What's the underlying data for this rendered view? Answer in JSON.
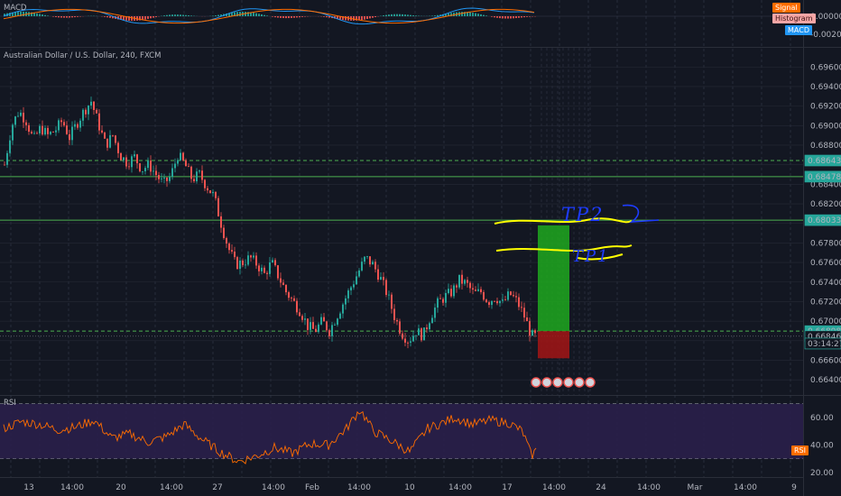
{
  "symbol": {
    "title": "Australian Dollar / U.S. Dollar, 240, FXCM"
  },
  "macd_pane": {
    "label": "MACD",
    "legend": [
      {
        "label": "Signal",
        "color": "#ff6d00"
      },
      {
        "label": "Histogram",
        "color": "#f7a6a6"
      },
      {
        "label": "MACD",
        "color": "#2196f3"
      }
    ],
    "ticks": [
      "0.00000",
      "-0.00200"
    ]
  },
  "rsi_pane": {
    "label": "RSI",
    "badge": "RSI",
    "ticks": [
      "60.00",
      "40.00",
      "20.00"
    ]
  },
  "price_axis": {
    "ticks": [
      "0.69600",
      "0.69400",
      "0.69200",
      "0.69000",
      "0.68800",
      "0.68400",
      "0.68200",
      "0.67800",
      "0.67600",
      "0.67400",
      "0.67200",
      "0.67000",
      "0.66600",
      "0.66400"
    ],
    "level_badges": [
      {
        "value": "0.68643",
        "color": "#26a69a"
      },
      {
        "value": "0.68478",
        "color": "#26a69a"
      },
      {
        "value": "0.68033",
        "color": "#26a69a"
      },
      {
        "value": "0.66898",
        "color": "#26a69a"
      },
      {
        "value": "0.66846",
        "color": "#131722"
      },
      {
        "value": "03:14:27",
        "color": "#131722"
      }
    ]
  },
  "time_axis": {
    "labels": [
      "13",
      "14:00",
      "20",
      "14:00",
      "27",
      "14:00",
      "Feb",
      "14:00",
      "10",
      "14:00",
      "17",
      "14:00",
      "24",
      "14:00",
      "Mar",
      "14:00",
      "9"
    ]
  },
  "annotations": {
    "handwriting": [
      "TP2",
      "TP1"
    ]
  },
  "colors": {
    "up": "#26a69a",
    "down": "#ef5350",
    "level_line": "#4caf50",
    "rsi_line": "#ff6d00",
    "rsi_band": "#2a1f4a",
    "profit_zone": "#1fa81f",
    "loss_zone": "#a31515",
    "handwriting_yellow": "#ffff00",
    "handwriting_blue": "#1e3cff"
  },
  "chart_data": {
    "type": "candlestick",
    "title": "Australian Dollar / U.S. Dollar, 240, FXCM",
    "ylim": [
      0.663,
      0.6975
    ],
    "horizontal_levels": [
      0.68643,
      0.68478,
      0.68033,
      0.66898
    ],
    "last_price": 0.66846,
    "close_path": [
      [
        0,
        0.686
      ],
      [
        8,
        0.69
      ],
      [
        16,
        0.6915
      ],
      [
        24,
        0.6905
      ],
      [
        32,
        0.6885
      ],
      [
        40,
        0.6898
      ],
      [
        48,
        0.689
      ],
      [
        56,
        0.6895
      ],
      [
        64,
        0.6905
      ],
      [
        72,
        0.6888
      ],
      [
        80,
        0.6902
      ],
      [
        88,
        0.6915
      ],
      [
        96,
        0.6925
      ],
      [
        104,
        0.6902
      ],
      [
        112,
        0.688
      ],
      [
        120,
        0.689
      ],
      [
        128,
        0.687
      ],
      [
        136,
        0.6862
      ],
      [
        144,
        0.6868
      ],
      [
        152,
        0.6855
      ],
      [
        160,
        0.686
      ],
      [
        168,
        0.685
      ],
      [
        176,
        0.684
      ],
      [
        184,
        0.6848
      ],
      [
        192,
        0.687
      ],
      [
        200,
        0.686
      ],
      [
        208,
        0.6845
      ],
      [
        216,
        0.685
      ],
      [
        224,
        0.6838
      ],
      [
        232,
        0.6828
      ],
      [
        240,
        0.68
      ],
      [
        248,
        0.6775
      ],
      [
        256,
        0.6758
      ],
      [
        264,
        0.676
      ],
      [
        272,
        0.6765
      ],
      [
        280,
        0.6758
      ],
      [
        288,
        0.6748
      ],
      [
        296,
        0.676
      ],
      [
        304,
        0.6745
      ],
      [
        312,
        0.673
      ],
      [
        320,
        0.672
      ],
      [
        328,
        0.671
      ],
      [
        336,
        0.6695
      ],
      [
        344,
        0.669
      ],
      [
        352,
        0.67
      ],
      [
        360,
        0.669
      ],
      [
        368,
        0.6705
      ],
      [
        376,
        0.672
      ],
      [
        384,
        0.6735
      ],
      [
        392,
        0.675
      ],
      [
        400,
        0.6765
      ],
      [
        408,
        0.6758
      ],
      [
        416,
        0.6745
      ],
      [
        424,
        0.6728
      ],
      [
        432,
        0.6705
      ],
      [
        440,
        0.6688
      ],
      [
        448,
        0.668
      ],
      [
        456,
        0.669
      ],
      [
        464,
        0.6685
      ],
      [
        472,
        0.6705
      ],
      [
        480,
        0.6718
      ],
      [
        488,
        0.6725
      ],
      [
        496,
        0.673
      ],
      [
        504,
        0.6742
      ],
      [
        512,
        0.6738
      ],
      [
        520,
        0.6728
      ],
      [
        528,
        0.673
      ],
      [
        536,
        0.672
      ],
      [
        544,
        0.6725
      ],
      [
        552,
        0.6718
      ],
      [
        560,
        0.6728
      ],
      [
        568,
        0.672
      ],
      [
        576,
        0.6705
      ],
      [
        584,
        0.6685
      ],
      [
        590,
        0.6684
      ]
    ],
    "position_tool": {
      "entry": 0.66898,
      "target": 0.6798,
      "stop": 0.6662
    },
    "macd": {
      "signal_color": "#ff6d00",
      "macd_color": "#2196f3"
    },
    "rsi": {
      "upper_band": 70,
      "lower_band": 30,
      "ylim": [
        18,
        75
      ],
      "values": [
        [
          0,
          52
        ],
        [
          20,
          57
        ],
        [
          40,
          55
        ],
        [
          60,
          51
        ],
        [
          80,
          53
        ],
        [
          100,
          58
        ],
        [
          120,
          45
        ],
        [
          140,
          48
        ],
        [
          160,
          42
        ],
        [
          180,
          46
        ],
        [
          200,
          55
        ],
        [
          220,
          44
        ],
        [
          240,
          35
        ],
        [
          260,
          28
        ],
        [
          280,
          32
        ],
        [
          300,
          38
        ],
        [
          320,
          34
        ],
        [
          340,
          41
        ],
        [
          360,
          40
        ],
        [
          380,
          52
        ],
        [
          395,
          66
        ],
        [
          410,
          50
        ],
        [
          430,
          43
        ],
        [
          450,
          35
        ],
        [
          470,
          52
        ],
        [
          490,
          57
        ],
        [
          500,
          60
        ],
        [
          520,
          55
        ],
        [
          540,
          58
        ],
        [
          560,
          56
        ],
        [
          575,
          50
        ],
        [
          585,
          32
        ],
        [
          590,
          36
        ]
      ]
    }
  }
}
